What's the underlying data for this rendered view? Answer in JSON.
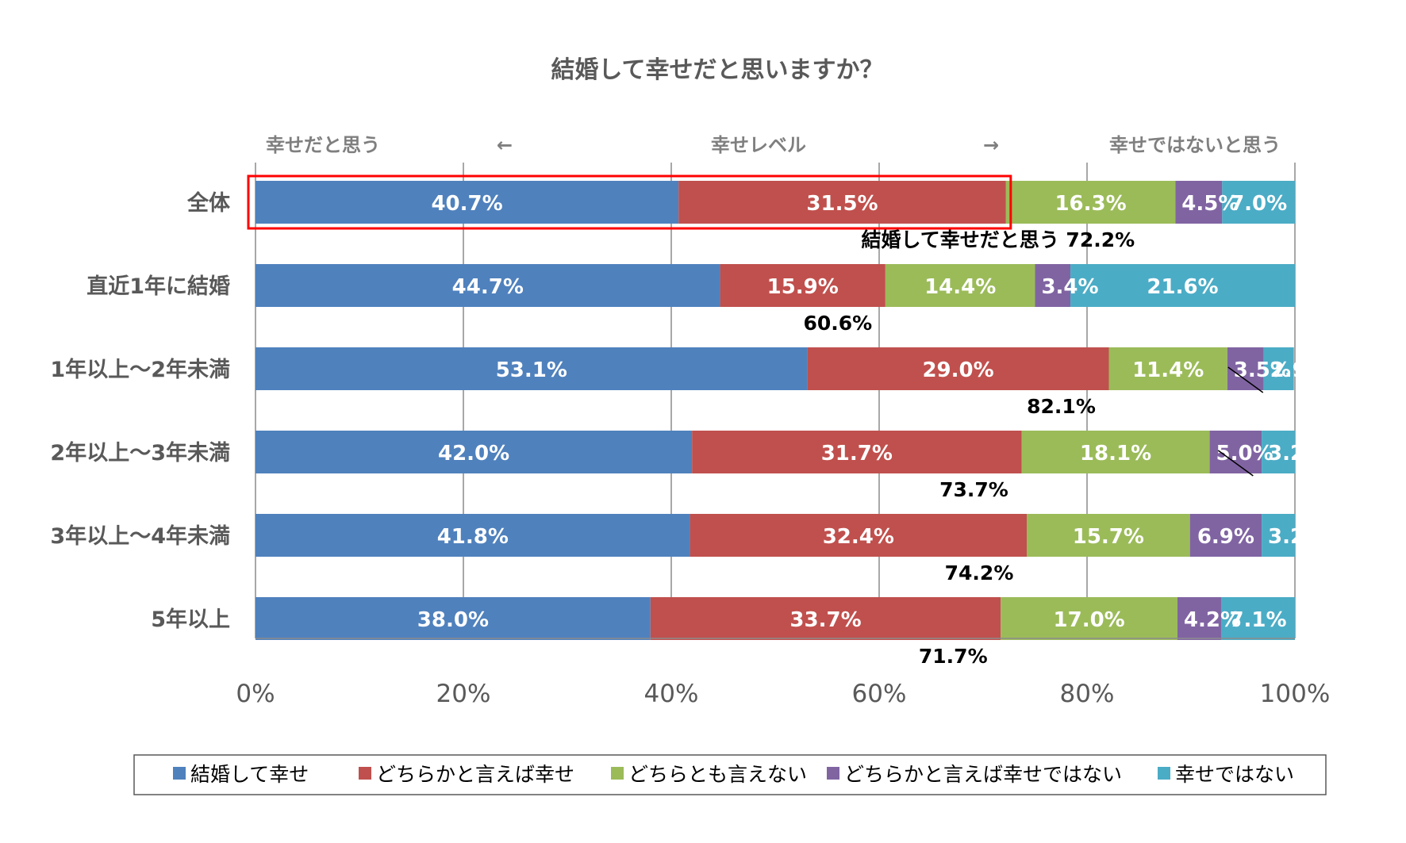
{
  "chart_data": {
    "type": "bar",
    "orientation": "horizontal",
    "stacked": true,
    "title": "結婚して幸せだと思いますか？",
    "header": {
      "left": "幸せだと思う",
      "left_arrow": "←",
      "center": "幸せレベル",
      "right_arrow": "→",
      "right": "幸せではないと思う"
    },
    "categories": [
      "全体",
      "直近1年に結婚",
      "1年以上～2年未満",
      "2年以上～3年未満",
      "3年以上～4年未満",
      "5年以上"
    ],
    "series": [
      {
        "name": "結婚して幸せ",
        "color": "#4f81bd",
        "values": [
          40.7,
          44.7,
          53.1,
          42.0,
          41.8,
          38.0
        ]
      },
      {
        "name": "どちらかと言えば幸せ",
        "color": "#c0504d",
        "values": [
          31.5,
          15.9,
          29.0,
          31.7,
          32.4,
          33.7
        ]
      },
      {
        "name": "どちらとも言えない",
        "color": "#9bbb59",
        "values": [
          16.3,
          14.4,
          11.4,
          18.1,
          15.7,
          17.0
        ]
      },
      {
        "name": "どちらかと言えば幸せではない",
        "color": "#8064a2",
        "values": [
          4.5,
          3.4,
          3.5,
          5.0,
          6.9,
          4.2
        ]
      },
      {
        "name": "幸せではない",
        "color": "#4bacc6",
        "values": [
          7.0,
          21.6,
          2.9,
          3.2,
          3.2,
          7.1
        ]
      }
    ],
    "totals_happy": {
      "label_prefix": "結婚して幸せだと思う",
      "values": [
        "72.2%",
        "60.6%",
        "82.1%",
        "73.7%",
        "74.2%",
        "71.7%"
      ]
    },
    "highlight": {
      "category": "全体",
      "color": "#ff0000"
    },
    "xlim": [
      0,
      100
    ],
    "xticks": [
      "0%",
      "20%",
      "40%",
      "60%",
      "80%",
      "100%"
    ],
    "grid": true,
    "legend": "bottom"
  }
}
